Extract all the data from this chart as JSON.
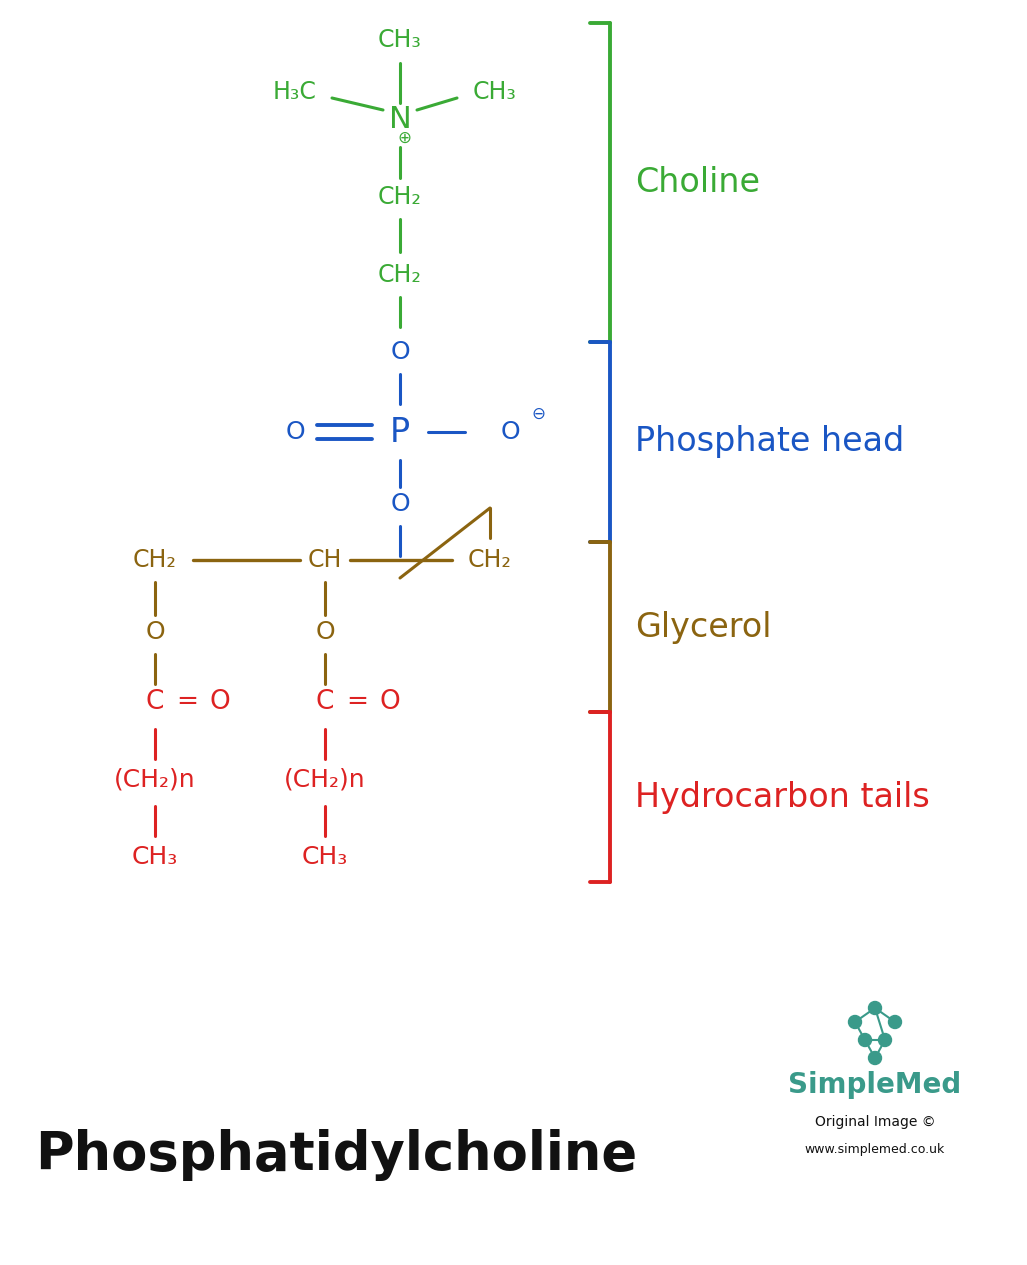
{
  "bg_color": "#ffffff",
  "green_color": "#3aaa35",
  "blue_color": "#1a56c4",
  "brown_color": "#8B6410",
  "red_color": "#dd2222",
  "black_color": "#111111",
  "teal_color": "#3a9a8a",
  "title": "Phosphatidylcholine",
  "simplemed_text": "SimpleMed",
  "original_text": "Original Image ©",
  "website": "www.simplemed.co.uk",
  "choline_label": "Choline",
  "phosphate_label": "Phosphate head",
  "glycerol_label": "Glycerol",
  "hydrocarbon_label": "Hydrocarbon tails",
  "figsize": [
    10.27,
    12.65
  ],
  "dpi": 100
}
